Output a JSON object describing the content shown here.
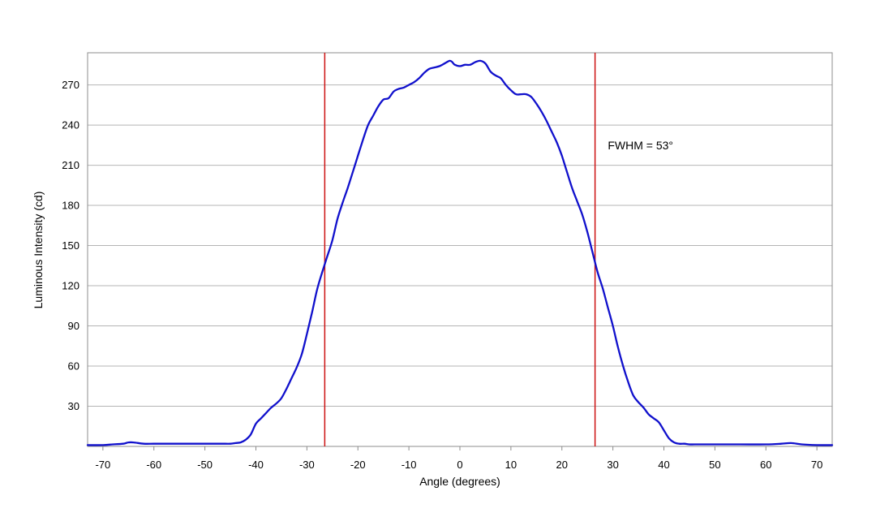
{
  "chart_data": {
    "type": "line",
    "xlabel": "Angle (degrees)",
    "ylabel": "Luminous Intensity (cd)",
    "xlim": [
      -73,
      73
    ],
    "ylim": [
      0,
      294
    ],
    "x_ticks": [
      -70,
      -60,
      -50,
      -40,
      -30,
      -20,
      -10,
      0,
      10,
      20,
      30,
      40,
      50,
      60,
      70
    ],
    "y_ticks": [
      30,
      60,
      90,
      120,
      150,
      180,
      210,
      240,
      270
    ],
    "grid": "horizontal",
    "colors": {
      "series": "#1010cc",
      "markers": "#cc1111",
      "grid": "#b4b4b4",
      "frame": "#8c8c8c"
    },
    "series": [
      {
        "x": [
          -73,
          -70,
          -68,
          -66,
          -65,
          -64,
          -62,
          -60,
          -58,
          -55,
          -50,
          -48,
          -46,
          -45,
          -44,
          -43,
          -42,
          -41,
          -40,
          -39,
          -38,
          -37,
          -36,
          -35,
          -34,
          -33,
          -32,
          -31,
          -30,
          -29,
          -28,
          -27,
          -26,
          -25,
          -24,
          -23,
          -22,
          -21,
          -20,
          -19,
          -18,
          -17,
          -16,
          -15,
          -14,
          -13,
          -12,
          -11,
          -10,
          -9,
          -8,
          -7,
          -6,
          -5,
          -4,
          -3,
          -2,
          -1.5,
          -1,
          0,
          1,
          2,
          3,
          4,
          5,
          6,
          7,
          8,
          9,
          10,
          11,
          12,
          13,
          14,
          15,
          16,
          17,
          18,
          19,
          20,
          21,
          22,
          23,
          24,
          25,
          26,
          27,
          28,
          29,
          30,
          31,
          32,
          33,
          34,
          35,
          36,
          37,
          38,
          39,
          40,
          41,
          42,
          43,
          44,
          45,
          46,
          48,
          50,
          55,
          60,
          63,
          65,
          67,
          70,
          73
        ],
        "y": [
          1,
          1,
          1.5,
          2,
          3,
          3,
          2,
          2,
          2,
          2,
          2,
          2,
          2,
          2,
          2.5,
          3,
          5,
          9,
          17,
          21,
          25,
          29,
          32,
          36,
          43,
          51,
          59,
          69,
          84,
          100,
          117,
          130,
          142,
          154,
          170,
          182,
          193,
          205,
          217,
          229,
          240,
          247,
          254,
          259,
          260,
          265,
          267,
          268,
          270,
          272,
          275,
          279,
          282,
          283,
          284,
          286,
          288,
          287,
          285,
          284,
          285,
          285,
          287,
          288,
          286,
          280,
          277,
          275,
          270,
          266,
          263,
          263,
          263,
          261,
          256,
          250,
          243,
          235,
          227,
          217,
          205,
          193,
          183,
          173,
          160,
          145,
          130,
          118,
          104,
          90,
          74,
          60,
          48,
          38,
          33,
          29,
          24,
          21,
          18,
          12,
          6,
          3,
          2,
          2,
          1.5,
          1.5,
          1.5,
          1.5,
          1.5,
          1.5,
          2,
          2.5,
          1.5,
          1,
          1
        ]
      }
    ],
    "vertical_markers": [
      -26.5,
      26.5
    ],
    "annotations": [
      {
        "text": "FWHM = 53°",
        "x": 29,
        "y": 222
      }
    ]
  }
}
